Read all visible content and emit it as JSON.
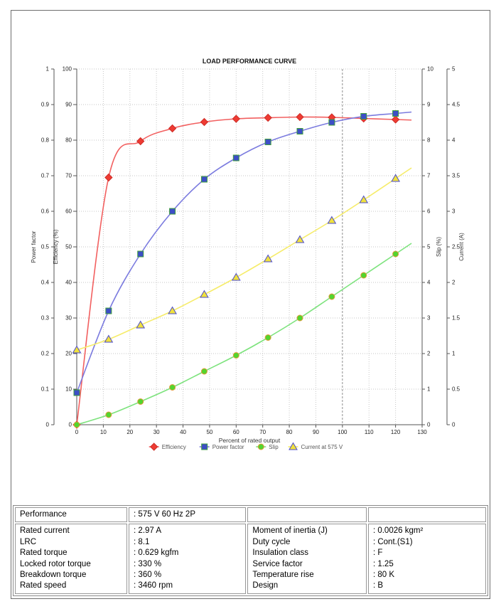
{
  "chart_data": {
    "type": "line",
    "title": "LOAD PERFORMANCE CURVE",
    "xlabel": "Percent of rated output",
    "xlim": [
      0,
      130
    ],
    "xtick_step": 10,
    "grid": true,
    "legend_position": "bottom",
    "x": [
      0,
      12,
      24,
      36,
      48,
      60,
      72,
      84,
      96,
      108,
      120
    ],
    "axes": {
      "power_factor": {
        "label": "Power factor",
        "min": 0,
        "max": 1,
        "step": 0.1
      },
      "efficiency": {
        "label": "Efficiency (%)",
        "min": 0,
        "max": 100,
        "step": 10
      },
      "slip": {
        "label": "Slip (%)",
        "min": 0,
        "max": 10,
        "step": 1
      },
      "current": {
        "label": "Current (A)",
        "min": 0,
        "max": 5,
        "step": 0.5
      }
    },
    "series": [
      {
        "name": "Efficiency",
        "axis": "efficiency",
        "marker": "diamond",
        "line_color": "#f26060",
        "marker_fill": "#ee3b33",
        "marker_stroke": "#cf2d27",
        "values": [
          0,
          69.5,
          79.7,
          83.3,
          85.1,
          86.0,
          86.3,
          86.5,
          86.4,
          86.1,
          85.8
        ]
      },
      {
        "name": "Power factor",
        "axis": "power_factor",
        "marker": "square",
        "line_color": "#7b7bdf",
        "marker_fill": "#3d4ec6",
        "marker_stroke": "#3f9e3c",
        "values": [
          0.09,
          0.32,
          0.48,
          0.6,
          0.69,
          0.75,
          0.795,
          0.825,
          0.85,
          0.867,
          0.875
        ]
      },
      {
        "name": "Slip",
        "axis": "slip",
        "marker": "circle",
        "line_color": "#7de37d",
        "marker_fill": "#52d52e",
        "marker_stroke": "#e09a3a",
        "values": [
          0,
          0.28,
          0.65,
          1.05,
          1.5,
          1.95,
          2.45,
          3.0,
          3.6,
          4.2,
          4.8
        ]
      },
      {
        "name": "Current at 575 V",
        "axis": "current",
        "marker": "triangle",
        "line_color": "#f6ec6a",
        "marker_fill": "#f0e13c",
        "marker_stroke": "#4d4dcc",
        "values": [
          1.05,
          1.2,
          1.4,
          1.6,
          1.83,
          2.07,
          2.33,
          2.6,
          2.87,
          3.16,
          3.46
        ]
      }
    ]
  },
  "spec_table": {
    "performance": {
      "label": "Performance",
      "value": ": 575 V 60 Hz 2P"
    },
    "left": [
      {
        "label": "Rated current",
        "value": ": 2.97 A"
      },
      {
        "label": "LRC",
        "value": ": 8.1"
      },
      {
        "label": "Rated torque",
        "value": ": 0.629 kgfm"
      },
      {
        "label": "Locked rotor torque",
        "value": ": 330 %"
      },
      {
        "label": "Breakdown torque",
        "value": ": 360 %"
      },
      {
        "label": "Rated speed",
        "value": ": 3460 rpm"
      }
    ],
    "right": [
      {
        "label": "Moment of inertia (J)",
        "value": ": 0.0026 kgm²"
      },
      {
        "label": "Duty cycle",
        "value": ": Cont.(S1)"
      },
      {
        "label": "Insulation class",
        "value": ": F"
      },
      {
        "label": "Service factor",
        "value": ": 1.25"
      },
      {
        "label": "Temperature rise",
        "value": ": 80 K"
      },
      {
        "label": "Design",
        "value": ": B"
      }
    ]
  },
  "colors": {
    "grid": "#c6c6c6",
    "grid_emphasis": "#8d8d8d",
    "axis": "#555555",
    "tick_text": "#222222",
    "legend_text": "#555555"
  }
}
